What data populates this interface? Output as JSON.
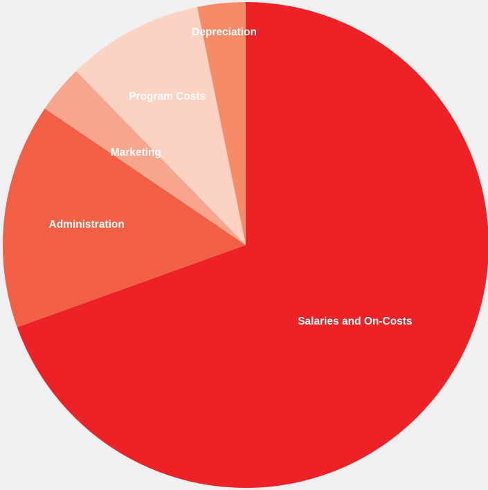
{
  "chart_data": {
    "type": "pie",
    "title": "",
    "legend": "none",
    "start_angle_deg": 0,
    "direction": "clockwise",
    "slices": [
      {
        "label": "Salaries and On-Costs",
        "value": 69.5,
        "color": "#ec2227"
      },
      {
        "label": "Administration",
        "value": 15.0,
        "color": "#f15f44"
      },
      {
        "label": "Marketing",
        "value": 3.2,
        "color": "#f7a58c"
      },
      {
        "label": "Program Costs",
        "value": 9.1,
        "color": "#fcd2c2"
      },
      {
        "label": "Depreciation",
        "value": 3.2,
        "color": "#f58b69"
      }
    ]
  }
}
